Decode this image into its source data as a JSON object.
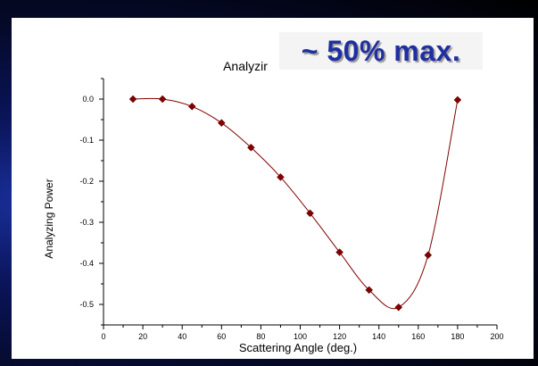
{
  "callout": {
    "text": "~ 50% max."
  },
  "chart_data": {
    "type": "scatter",
    "title": "Analyzir",
    "xlabel": "Scattering Angle (deg.)",
    "ylabel": "Analyzing Power",
    "xlim": [
      0,
      200
    ],
    "ylim": [
      -0.55,
      0.05
    ],
    "xticks": [
      "0",
      "20",
      "40",
      "60",
      "80",
      "100",
      "120",
      "140",
      "160",
      "180",
      "200"
    ],
    "yticks": [
      "0.0",
      "-0.1",
      "-0.2",
      "-0.3",
      "-0.4",
      "-0.5"
    ],
    "grid": false,
    "series": [
      {
        "x": [
          15,
          30,
          45,
          60,
          75,
          90,
          105,
          120,
          135,
          150,
          165,
          180
        ],
        "y": [
          0.0,
          0.0,
          -0.018,
          -0.058,
          -0.118,
          -0.19,
          -0.278,
          -0.373,
          -0.465,
          -0.507,
          -0.38,
          -0.002
        ],
        "marker": "diamond",
        "color": "#800000",
        "line": "smooth"
      }
    ]
  }
}
